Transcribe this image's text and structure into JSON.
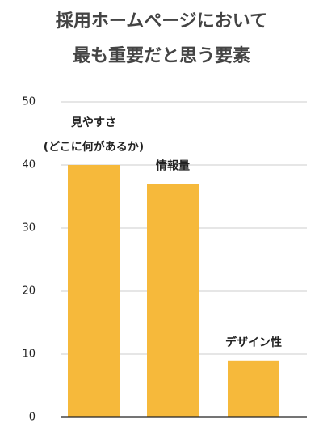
{
  "chart_data": {
    "type": "bar",
    "title": [
      "採用ホームページにおいて",
      "最も重要だと思う要素"
    ],
    "categories": [
      [
        "見やすさ",
        "(どこに何があるか)"
      ],
      [
        "情報量"
      ],
      [
        "デザイン性"
      ]
    ],
    "values": [
      40,
      37,
      9
    ],
    "color": "#f6b93b",
    "ylim": [
      0,
      50
    ],
    "yticks": [
      0,
      10,
      20,
      30,
      40,
      50
    ],
    "grid": true
  }
}
